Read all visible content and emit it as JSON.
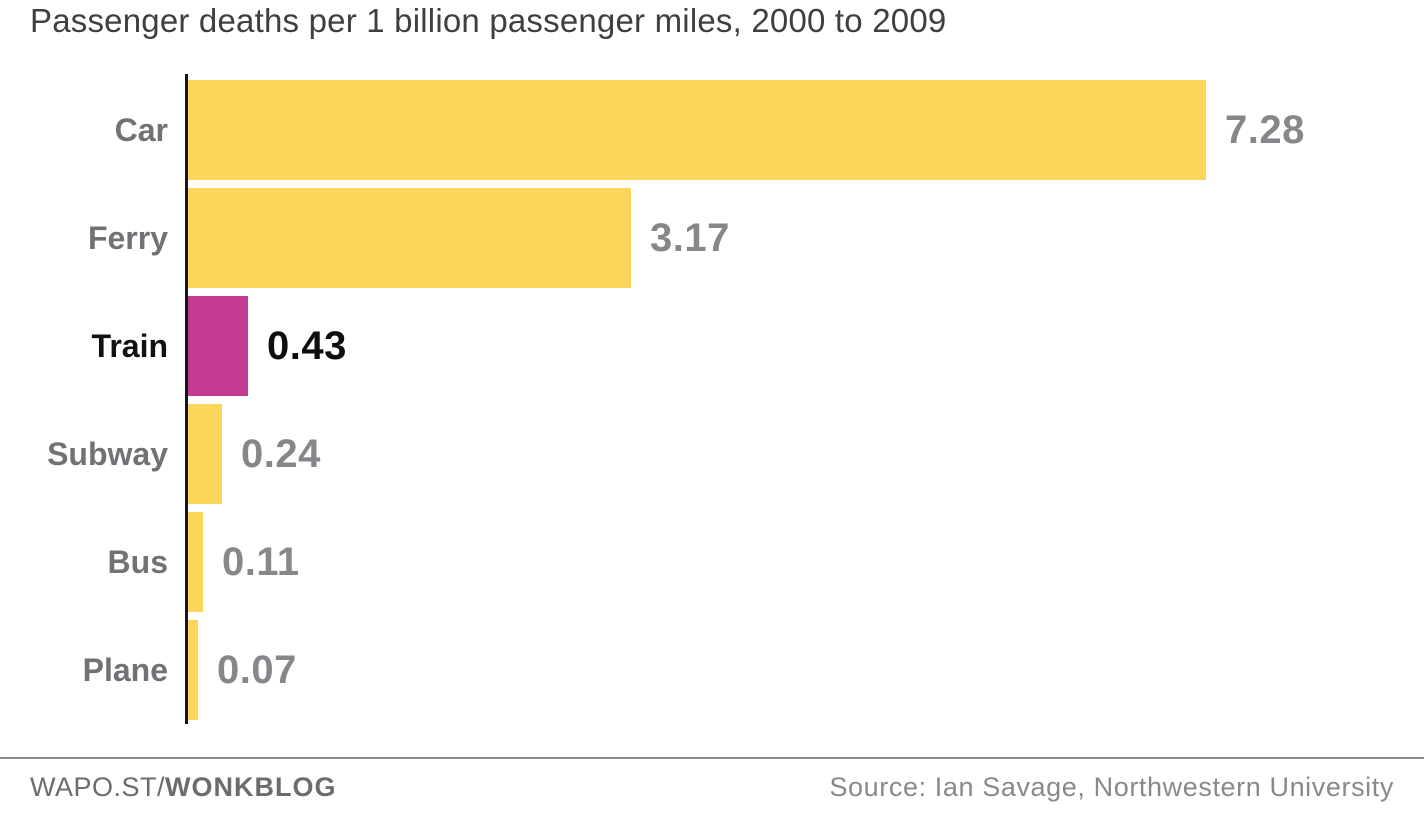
{
  "title": "Passenger deaths per 1 billion passenger miles, 2000 to 2009",
  "chart_data": {
    "type": "bar",
    "orientation": "horizontal",
    "categories": [
      "Car",
      "Ferry",
      "Train",
      "Subway",
      "Bus",
      "Plane"
    ],
    "values": [
      7.28,
      3.17,
      0.43,
      0.24,
      0.11,
      0.07
    ],
    "value_labels": [
      "7.28",
      "3.17",
      "0.43",
      "0.24",
      "0.11",
      "0.07"
    ],
    "highlighted_category": "Train",
    "title": "Passenger deaths per 1 billion passenger miles, 2000 to 2009",
    "xlabel": "",
    "ylabel": "",
    "xlim": [
      0,
      7.28
    ],
    "grid": false,
    "legend": false,
    "bar_color": "#FBD65B",
    "highlight_color": "#C33B92",
    "label_color": "#85878A",
    "highlight_label_color": "#111111",
    "axis_color": "#161616"
  },
  "footer": {
    "brand_prefix": "WAPO.ST/",
    "brand_bold": "WONKBLOG",
    "source": "Source: Ian Savage, Northwestern University"
  }
}
